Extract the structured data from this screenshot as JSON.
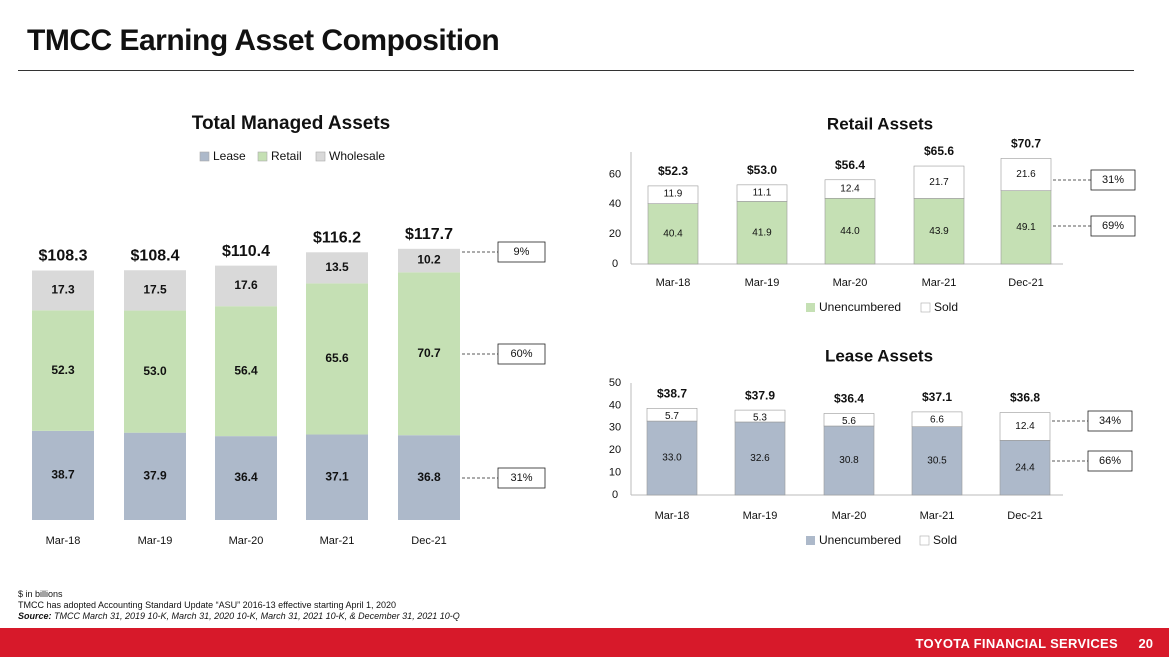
{
  "page": {
    "title": "TMCC Earning Asset Composition",
    "footnotes": {
      "line1": "$ in billions",
      "line2": "TMCC has adopted Accounting Standard Update “ASU” 2016-13 effective starting April 1, 2020",
      "source_label": "Source:",
      "source_text": " TMCC March 31, 2019 10-K, March 31, 2020 10-K, March 31, 2021 10-K, & December 31, 2021 10-Q"
    },
    "footer": {
      "brand": "TOYOTA FINANCIAL SERVICES",
      "page_number": "20"
    }
  },
  "colors": {
    "lease": "#adb9ca",
    "retail": "#c5e0b4",
    "wholesale": "#d9d9d9",
    "sold": "#ffffff",
    "footer": "#d7192a"
  },
  "chart_data": [
    {
      "type": "bar",
      "stacked": true,
      "title": "Total Managed Assets",
      "categories": [
        "Mar-18",
        "Mar-19",
        "Mar-20",
        "Mar-21",
        "Dec-21"
      ],
      "series": [
        {
          "name": "Lease",
          "values": [
            38.7,
            37.9,
            36.4,
            37.1,
            36.8
          ],
          "labels": [
            "38.7",
            "37.9",
            "36.4",
            "37.1",
            "36.8"
          ]
        },
        {
          "name": "Retail",
          "values": [
            52.3,
            53.0,
            56.4,
            65.6,
            70.7
          ],
          "labels": [
            "52.3",
            "53.0",
            "56.4",
            "65.6",
            "70.7"
          ]
        },
        {
          "name": "Wholesale",
          "values": [
            17.3,
            17.5,
            17.6,
            13.5,
            10.2
          ],
          "labels": [
            "17.3",
            "17.5",
            "17.6",
            "13.5",
            "10.2"
          ]
        }
      ],
      "totals": [
        "$108.3",
        "$108.4",
        "$110.4",
        "$116.2",
        "$117.7"
      ],
      "share_callouts": [
        "31%",
        "60%",
        "9%"
      ],
      "legend": "top-center",
      "ylim": [
        0,
        125
      ]
    },
    {
      "type": "bar",
      "stacked": true,
      "title": "Retail Assets",
      "categories": [
        "Mar-18",
        "Mar-19",
        "Mar-20",
        "Mar-21",
        "Dec-21"
      ],
      "series": [
        {
          "name": "Unencumbered",
          "values": [
            40.4,
            41.9,
            44.0,
            43.9,
            49.1
          ],
          "labels": [
            "40.4",
            "41.9",
            "44.0",
            "43.9",
            "49.1"
          ]
        },
        {
          "name": "Sold",
          "values": [
            11.9,
            11.1,
            12.4,
            21.7,
            21.6
          ],
          "labels": [
            "11.9",
            "11.1",
            "12.4",
            "21.7",
            "21.6"
          ]
        }
      ],
      "totals": [
        "$52.3",
        "$53.0",
        "$56.4",
        "$65.6",
        "$70.7"
      ],
      "share_callouts": [
        "69%",
        "31%"
      ],
      "yticks": [
        "0",
        "20",
        "40",
        "60"
      ],
      "ylim": [
        0,
        75
      ],
      "legend": "bottom-center"
    },
    {
      "type": "bar",
      "stacked": true,
      "title": "Lease Assets",
      "categories": [
        "Mar-18",
        "Mar-19",
        "Mar-20",
        "Mar-21",
        "Dec-21"
      ],
      "series": [
        {
          "name": "Unencumbered",
          "values": [
            33.0,
            32.6,
            30.8,
            30.5,
            24.4
          ],
          "labels": [
            "33.0",
            "32.6",
            "30.8",
            "30.5",
            "24.4"
          ]
        },
        {
          "name": "Sold",
          "values": [
            5.7,
            5.3,
            5.6,
            6.6,
            12.4
          ],
          "labels": [
            "5.7",
            "5.3",
            "5.6",
            "6.6",
            "12.4"
          ]
        }
      ],
      "totals": [
        "$38.7",
        "$37.9",
        "$36.4",
        "$37.1",
        "$36.8"
      ],
      "share_callouts": [
        "66%",
        "34%"
      ],
      "yticks": [
        "0",
        "10",
        "20",
        "30",
        "40",
        "50"
      ],
      "ylim": [
        0,
        50
      ],
      "legend": "bottom-center"
    }
  ]
}
